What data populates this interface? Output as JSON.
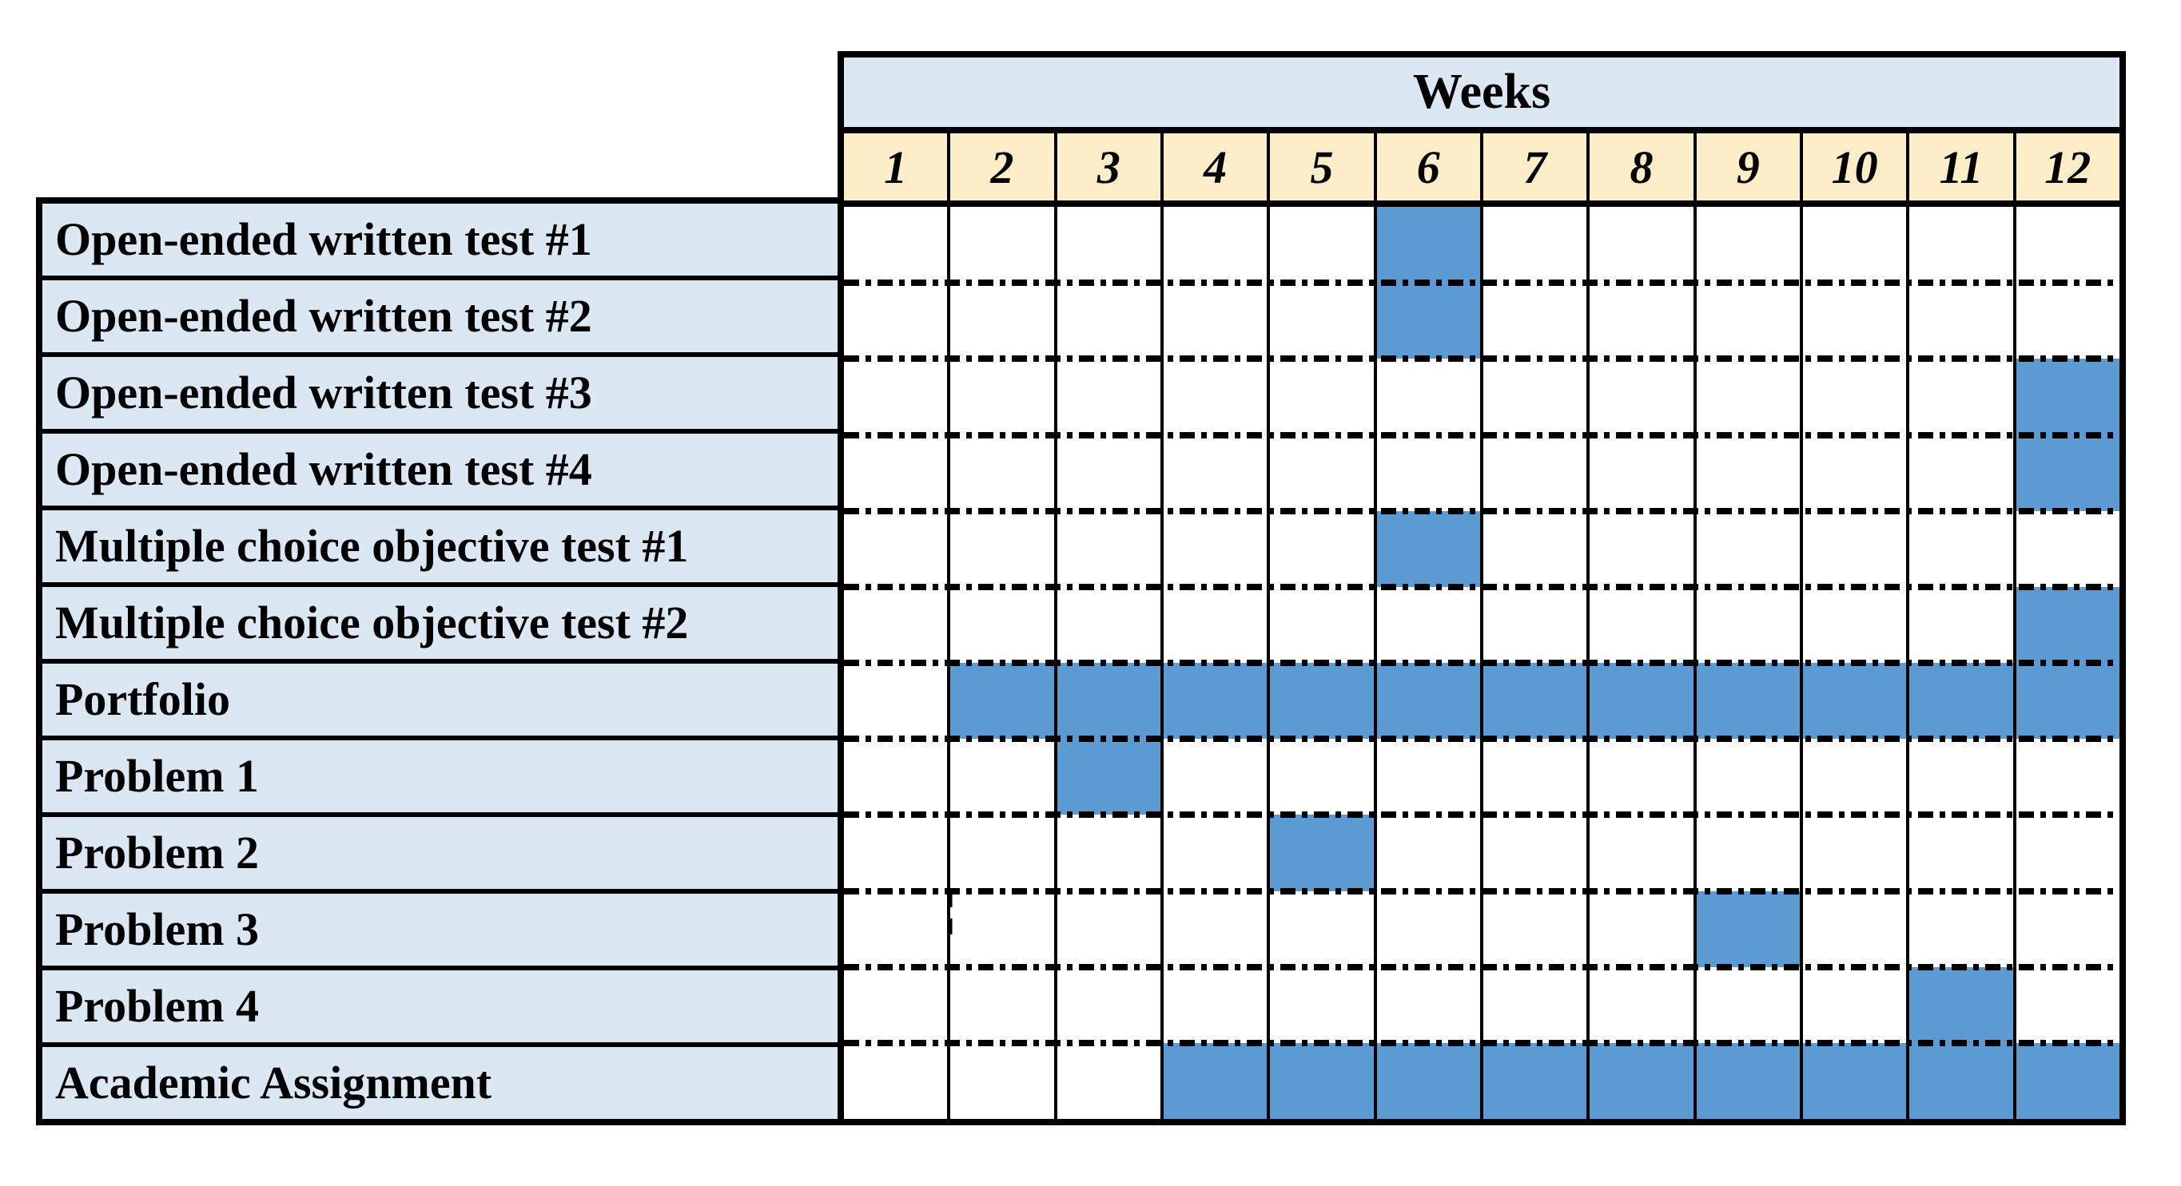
{
  "chart_data": {
    "type": "table",
    "title": "Weeks",
    "weeks": [
      "1",
      "2",
      "3",
      "4",
      "5",
      "6",
      "7",
      "8",
      "9",
      "10",
      "11",
      "12"
    ],
    "rows": [
      {
        "label": "Open-ended written test #1",
        "filled_weeks": [
          6
        ]
      },
      {
        "label": "Open-ended written test #2",
        "filled_weeks": [
          6
        ]
      },
      {
        "label": "Open-ended written test #3",
        "filled_weeks": [
          12
        ]
      },
      {
        "label": "Open-ended written test #4",
        "filled_weeks": [
          12
        ]
      },
      {
        "label": "Multiple choice objective test #1",
        "filled_weeks": [
          6
        ]
      },
      {
        "label": "Multiple choice objective test #2",
        "filled_weeks": [
          12
        ]
      },
      {
        "label": "Portfolio",
        "filled_weeks": [
          2,
          3,
          4,
          5,
          6,
          7,
          8,
          9,
          10,
          11,
          12
        ]
      },
      {
        "label": "Problem 1",
        "filled_weeks": [
          3
        ]
      },
      {
        "label": "Problem 2",
        "filled_weeks": [
          5
        ]
      },
      {
        "label": "Problem 3",
        "filled_weeks": [
          9
        ]
      },
      {
        "label": "Problem 4",
        "filled_weeks": [
          11
        ]
      },
      {
        "label": "Academic Assignment",
        "filled_weeks": [
          4,
          5,
          6,
          7,
          8,
          9,
          10,
          11,
          12
        ]
      }
    ],
    "layout": {
      "x_axis": "weeks 1-12, equal columns",
      "fill_meaning": "blue cell = activity scheduled that week",
      "grid": "solid vertical lines, dash-dot horizontal lines",
      "legend_position": "none"
    },
    "colors": {
      "fill_blue": "#5b9ad3",
      "label_bg": "#dbe8f4",
      "weeks_header_bg": "#dbe8f4",
      "numbers_bg": "#fdeec9",
      "border": "#000000",
      "background": "#ffffff"
    }
  }
}
